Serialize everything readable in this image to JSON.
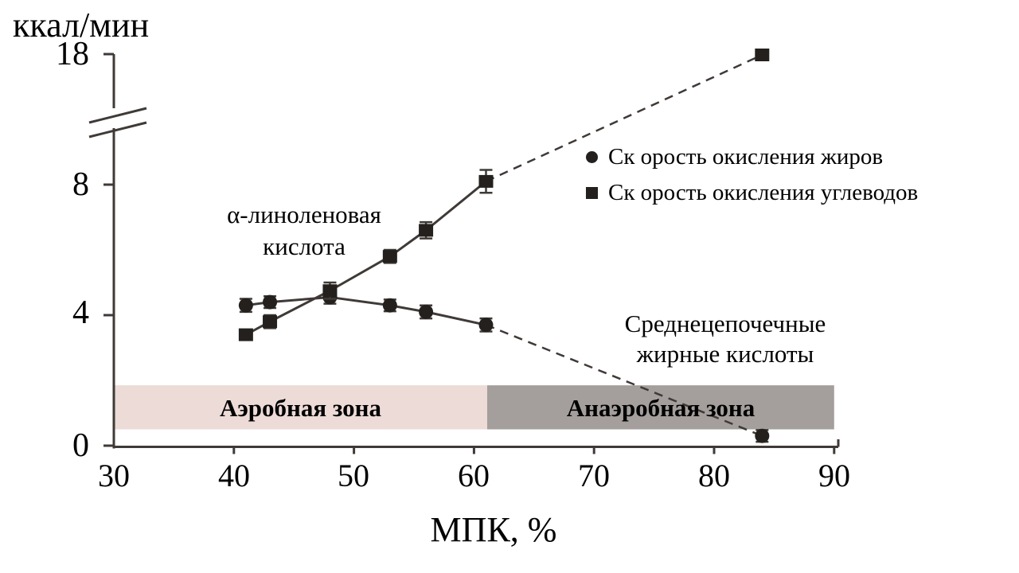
{
  "chart_data": {
    "type": "line",
    "title": "",
    "ylabel": "ккал/мин",
    "xlabel": "МПК, %",
    "x_ticks": [
      30,
      40,
      50,
      60,
      70,
      80,
      90
    ],
    "y_ticks_lower": [
      0,
      4,
      8
    ],
    "y_tick_top": 18,
    "y_axis_break": true,
    "xlim": [
      30,
      90
    ],
    "ylim_lower": [
      0,
      8.5
    ],
    "grid": false,
    "legend_position": "upper right",
    "line_color": "#3f3a37",
    "marker_color": "#24201e",
    "series": [
      {
        "name": "Ск орость окисления жиров",
        "marker": "circle",
        "line_style": "solid-then-dashed",
        "dashed_from_index": 5,
        "x": [
          41,
          43,
          48,
          53,
          56,
          61,
          84
        ],
        "y": [
          4.3,
          4.4,
          4.55,
          4.3,
          4.1,
          3.7,
          0.3
        ],
        "err": [
          0.2,
          0.18,
          0.2,
          0.18,
          0.2,
          0.2,
          0.18
        ]
      },
      {
        "name": "Ск орость окисления углеводов",
        "marker": "square",
        "line_style": "solid-then-dashed",
        "dashed_from_index": 5,
        "x": [
          41,
          43,
          48,
          53,
          56,
          61,
          84
        ],
        "y": [
          3.4,
          3.8,
          4.75,
          5.8,
          6.6,
          8.1,
          18
        ],
        "err": [
          0.15,
          0.2,
          0.25,
          0.2,
          0.25,
          0.35,
          0
        ]
      }
    ],
    "zones": [
      {
        "label": "Аэробная зона",
        "color": "#ecdbd7",
        "x_from": 30,
        "x_to": 61.1,
        "y_from": 0.5,
        "y_to": 1.85
      },
      {
        "label": "Анаэробная зона",
        "color": "#a49f9c",
        "x_from": 61.1,
        "x_to": 90,
        "y_from": 0.5,
        "y_to": 1.85
      }
    ],
    "annotations": [
      {
        "name": "alpha-linolenic-acid",
        "lines": [
          "α-линоленовая",
          "кислота"
        ]
      },
      {
        "name": "medium-chain-fatty-acids",
        "lines": [
          "Среднецепочечные",
          "жирные кислоты"
        ]
      }
    ]
  }
}
